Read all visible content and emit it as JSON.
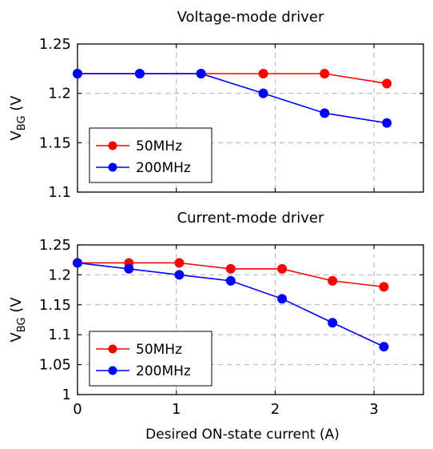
{
  "chart_data": [
    {
      "type": "line",
      "title": "Voltage-mode driver",
      "ylabel_main": "V",
      "ylabel_sub": "BG",
      "ylabel_tail": " (V",
      "xlim": [
        0,
        3.5
      ],
      "ylim": [
        1.1,
        1.25
      ],
      "x_ticks": [
        0,
        1,
        2,
        3
      ],
      "x_tick_labels": [],
      "y_ticks": [
        1.1,
        1.15,
        1.2,
        1.25
      ],
      "y_tick_labels": [
        "1.1",
        "1.15",
        "1.2",
        "1.25"
      ],
      "grid": true,
      "legend_position": "bottom-left",
      "series": [
        {
          "name": "50MHz",
          "color": "#ff0000",
          "x": [
            0,
            0.63,
            1.25,
            1.88,
            2.5,
            3.13
          ],
          "y": [
            1.22,
            1.22,
            1.22,
            1.22,
            1.22,
            1.21
          ]
        },
        {
          "name": "200MHz",
          "color": "#0000ff",
          "x": [
            0,
            0.63,
            1.25,
            1.88,
            2.5,
            3.13
          ],
          "y": [
            1.22,
            1.22,
            1.22,
            1.2,
            1.18,
            1.17
          ]
        }
      ]
    },
    {
      "type": "line",
      "title": "Current-mode driver",
      "ylabel_main": "V",
      "ylabel_sub": "BG",
      "ylabel_tail": " (V",
      "xlabel": "Desired ON-state current (A)",
      "xlim": [
        0,
        3.5
      ],
      "ylim": [
        1.0,
        1.25
      ],
      "x_ticks": [
        0,
        1,
        2,
        3
      ],
      "x_tick_labels": [
        "0",
        "1",
        "2",
        "3"
      ],
      "y_ticks": [
        1.0,
        1.05,
        1.1,
        1.15,
        1.2,
        1.25
      ],
      "y_tick_labels": [
        "1",
        "1.05",
        "1.1",
        "1.15",
        "1.2",
        "1.25"
      ],
      "grid": true,
      "legend_position": "bottom-left",
      "series": [
        {
          "name": "50MHz",
          "color": "#ff0000",
          "x": [
            0,
            0.52,
            1.03,
            1.55,
            2.07,
            2.58,
            3.1
          ],
          "y": [
            1.22,
            1.22,
            1.22,
            1.21,
            1.21,
            1.19,
            1.18
          ]
        },
        {
          "name": "200MHz",
          "color": "#0000ff",
          "x": [
            0,
            0.52,
            1.03,
            1.55,
            2.07,
            2.58,
            3.1
          ],
          "y": [
            1.22,
            1.21,
            1.2,
            1.19,
            1.16,
            1.12,
            1.08
          ]
        }
      ]
    }
  ]
}
